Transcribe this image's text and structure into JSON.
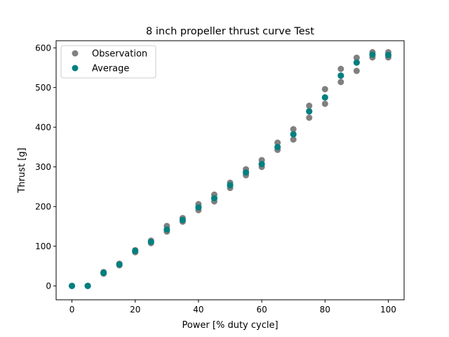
{
  "chart_data": {
    "type": "scatter",
    "title": "8 inch propeller thrust curve Test",
    "xlabel": "Power [% duty cycle]",
    "ylabel": "Thrust [g]",
    "xlim": [
      -5,
      105
    ],
    "ylim": [
      -35,
      618
    ],
    "xticks": [
      0,
      20,
      40,
      60,
      80,
      100
    ],
    "yticks": [
      0,
      100,
      200,
      300,
      400,
      500,
      600
    ],
    "grid": false,
    "legend_position": "upper-left",
    "series": [
      {
        "name": "Observation",
        "color": "#808080",
        "points": [
          [
            0,
            0
          ],
          [
            0,
            0
          ],
          [
            0,
            0
          ],
          [
            5,
            0
          ],
          [
            5,
            0
          ],
          [
            5,
            0
          ],
          [
            10,
            31
          ],
          [
            10,
            33
          ],
          [
            10,
            35
          ],
          [
            15,
            52
          ],
          [
            15,
            54
          ],
          [
            15,
            56
          ],
          [
            20,
            85
          ],
          [
            20,
            88
          ],
          [
            20,
            90
          ],
          [
            25,
            108
          ],
          [
            25,
            111
          ],
          [
            25,
            114
          ],
          [
            30,
            137
          ],
          [
            30,
            142
          ],
          [
            30,
            151
          ],
          [
            35,
            162
          ],
          [
            35,
            166
          ],
          [
            35,
            171
          ],
          [
            40,
            191
          ],
          [
            40,
            198
          ],
          [
            40,
            206
          ],
          [
            45,
            213
          ],
          [
            45,
            221
          ],
          [
            45,
            230
          ],
          [
            50,
            247
          ],
          [
            50,
            254
          ],
          [
            50,
            260
          ],
          [
            55,
            279
          ],
          [
            55,
            286
          ],
          [
            55,
            294
          ],
          [
            60,
            300
          ],
          [
            60,
            307
          ],
          [
            60,
            317
          ],
          [
            65,
            343
          ],
          [
            65,
            350
          ],
          [
            65,
            361
          ],
          [
            70,
            369
          ],
          [
            70,
            382
          ],
          [
            70,
            395
          ],
          [
            75,
            424
          ],
          [
            75,
            440
          ],
          [
            75,
            454
          ],
          [
            80,
            459
          ],
          [
            80,
            475
          ],
          [
            80,
            496
          ],
          [
            85,
            514
          ],
          [
            85,
            530
          ],
          [
            85,
            547
          ],
          [
            90,
            542
          ],
          [
            90,
            563
          ],
          [
            90,
            575
          ],
          [
            95,
            576
          ],
          [
            95,
            583
          ],
          [
            95,
            589
          ],
          [
            100,
            576
          ],
          [
            100,
            582
          ],
          [
            100,
            589
          ]
        ]
      },
      {
        "name": "Average",
        "color": "#008080",
        "points": [
          [
            0,
            0
          ],
          [
            5,
            0
          ],
          [
            10,
            33
          ],
          [
            15,
            54
          ],
          [
            20,
            88
          ],
          [
            25,
            111
          ],
          [
            30,
            142
          ],
          [
            35,
            166
          ],
          [
            40,
            198
          ],
          [
            45,
            221
          ],
          [
            50,
            254
          ],
          [
            55,
            286
          ],
          [
            60,
            307
          ],
          [
            65,
            350
          ],
          [
            70,
            382
          ],
          [
            75,
            440
          ],
          [
            80,
            475
          ],
          [
            85,
            530
          ],
          [
            90,
            563
          ],
          [
            95,
            583
          ],
          [
            100,
            582
          ]
        ]
      }
    ]
  }
}
